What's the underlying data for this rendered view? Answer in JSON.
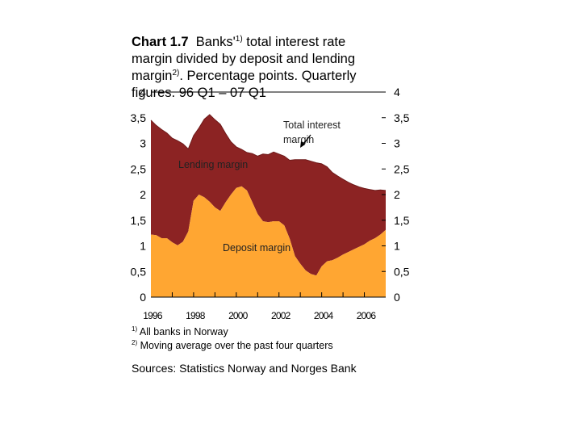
{
  "title": {
    "label": "Chart 1.7",
    "text_a": "Banks'",
    "ref1": "1)",
    "text_b": " total interest rate margin divided by deposit and lending margin",
    "ref2": "2)",
    "text_c": ". Percentage points. Quarterly figures. 96 Q1 – 07 Q1"
  },
  "footnotes": [
    {
      "mark": "1)",
      "text": "All banks in Norway"
    },
    {
      "mark": "2)",
      "text": "Moving average over the past four quarters"
    }
  ],
  "sources": "Sources: Statistics Norway and Norges Bank",
  "colors": {
    "deposit_area": "#ffa632",
    "lending_area": "#8c2323",
    "axis": "#000000"
  },
  "chart_data": {
    "type": "area",
    "stacked": true,
    "title": "",
    "xlabel": "",
    "ylabel": "",
    "ylim": [
      0,
      4
    ],
    "y_ticks": [
      0,
      0.5,
      1,
      1.5,
      2,
      2.5,
      3,
      3.5,
      4
    ],
    "y_tick_labels": [
      "0",
      "0,5",
      "1",
      "1,5",
      "2",
      "2,5",
      "3",
      "3,5",
      "4"
    ],
    "y_tick_labels_right": [
      "0",
      "0,5",
      "1",
      "1,5",
      "2",
      "2,5",
      "3",
      "3,5",
      "4"
    ],
    "x_tick_labels": [
      "1996",
      "1998",
      "2000",
      "2002",
      "2004",
      "2006"
    ],
    "x_range": [
      "1996 Q1",
      "2007 Q1"
    ],
    "annotations": {
      "total": "Total interest margin",
      "lending": "Lending margin",
      "deposit": "Deposit margin"
    },
    "x": [
      "1996 Q1",
      "1996 Q2",
      "1996 Q3",
      "1996 Q4",
      "1997 Q1",
      "1997 Q2",
      "1997 Q3",
      "1997 Q4",
      "1998 Q1",
      "1998 Q2",
      "1998 Q3",
      "1998 Q4",
      "1999 Q1",
      "1999 Q2",
      "1999 Q3",
      "1999 Q4",
      "2000 Q1",
      "2000 Q2",
      "2000 Q3",
      "2000 Q4",
      "2001 Q1",
      "2001 Q2",
      "2001 Q3",
      "2001 Q4",
      "2002 Q1",
      "2002 Q2",
      "2002 Q3",
      "2002 Q4",
      "2003 Q1",
      "2003 Q2",
      "2003 Q3",
      "2003 Q4",
      "2004 Q1",
      "2004 Q2",
      "2004 Q3",
      "2004 Q4",
      "2005 Q1",
      "2005 Q2",
      "2005 Q3",
      "2005 Q4",
      "2006 Q1",
      "2006 Q2",
      "2006 Q3",
      "2006 Q4",
      "2007 Q1"
    ],
    "series": [
      {
        "name": "Deposit margin",
        "values": [
          1.22,
          1.21,
          1.15,
          1.15,
          1.07,
          1.01,
          1.08,
          1.28,
          1.88,
          2.0,
          1.95,
          1.86,
          1.75,
          1.68,
          1.85,
          2.0,
          2.13,
          2.16,
          2.08,
          1.85,
          1.62,
          1.48,
          1.46,
          1.48,
          1.48,
          1.4,
          1.14,
          0.8,
          0.65,
          0.52,
          0.45,
          0.42,
          0.6,
          0.7,
          0.72,
          0.77,
          0.83,
          0.88,
          0.93,
          0.98,
          1.03,
          1.1,
          1.15,
          1.22,
          1.31
        ]
      },
      {
        "name": "Lending margin",
        "values": [
          2.23,
          2.14,
          2.12,
          2.05,
          2.03,
          2.04,
          1.91,
          1.61,
          1.27,
          1.3,
          1.52,
          1.7,
          1.71,
          1.69,
          1.34,
          1.03,
          0.8,
          0.72,
          0.74,
          0.95,
          1.13,
          1.31,
          1.32,
          1.35,
          1.31,
          1.35,
          1.53,
          1.88,
          2.03,
          2.16,
          2.2,
          2.2,
          2.0,
          1.84,
          1.71,
          1.59,
          1.47,
          1.36,
          1.26,
          1.17,
          1.09,
          1.0,
          0.93,
          0.87,
          0.77
        ]
      },
      {
        "name": "Total interest margin",
        "values": [
          3.45,
          3.35,
          3.27,
          3.2,
          3.1,
          3.05,
          2.99,
          2.89,
          3.15,
          3.3,
          3.47,
          3.56,
          3.46,
          3.37,
          3.19,
          3.03,
          2.93,
          2.88,
          2.82,
          2.8,
          2.75,
          2.79,
          2.78,
          2.83,
          2.79,
          2.75,
          2.67,
          2.68,
          2.68,
          2.68,
          2.65,
          2.62,
          2.6,
          2.54,
          2.43,
          2.36,
          2.3,
          2.24,
          2.19,
          2.15,
          2.12,
          2.1,
          2.08,
          2.09,
          2.08
        ]
      }
    ]
  }
}
